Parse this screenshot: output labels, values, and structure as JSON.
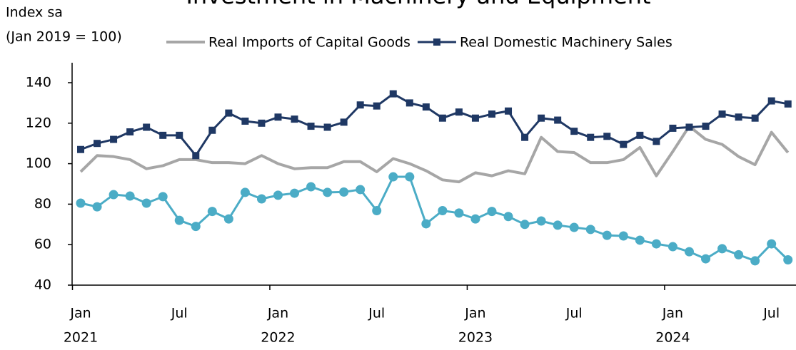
{
  "chart_data": {
    "type": "line",
    "title": "Investment in Machinery and Equipment",
    "y_label_lines": [
      "Index sa",
      "(Jan 2019 = 100)"
    ],
    "categories": [
      "Jan",
      null,
      null,
      null,
      null,
      null,
      "Jul",
      null,
      null,
      null,
      null,
      null,
      "Jan",
      null,
      null,
      null,
      null,
      null,
      "Jul",
      null,
      null,
      null,
      null,
      null,
      "Jan",
      null,
      null,
      null,
      null,
      null,
      "Jul",
      null,
      null,
      null,
      null,
      null,
      "Jan",
      null,
      null,
      null,
      null,
      null,
      "Jul",
      null
    ],
    "years": [
      "2021",
      "2022",
      "2023",
      "2024"
    ],
    "ylim": [
      40,
      140
    ],
    "yticks": [
      40,
      60,
      80,
      100,
      120,
      140
    ],
    "series": [
      {
        "name": "Real Imports of Capital Goods",
        "color": "#a6a6a6",
        "marker": "none",
        "values": [
          96,
          104,
          103.5,
          102,
          97.5,
          99,
          102,
          102,
          100.5,
          100.5,
          100,
          104,
          100,
          97.5,
          98,
          98,
          101,
          101,
          96,
          102.5,
          100,
          96.5,
          92,
          91,
          95.5,
          94,
          96.5,
          95,
          113,
          106,
          105.5,
          100.5,
          100.5,
          102,
          108,
          94,
          106,
          118.5,
          112,
          109.5,
          103.5,
          99.5,
          115.5,
          105.5
        ]
      },
      {
        "name": "Real Domestic Machinery Sales",
        "color": "#1f3864",
        "marker": "square",
        "values": [
          107,
          110,
          112,
          115.7,
          118,
          114,
          114,
          104,
          116.5,
          125,
          121,
          120,
          123,
          122,
          118.5,
          118,
          120.5,
          129,
          128.5,
          134.5,
          130,
          128,
          122.5,
          125.5,
          122.5,
          124.5,
          126,
          113,
          122.5,
          121.5,
          116,
          113,
          113.5,
          109.5,
          114,
          111,
          117.5,
          118,
          118.5,
          124.5,
          123,
          122.5,
          131,
          129.5
        ]
      },
      {
        "color": "#4bacc6",
        "marker": "circle",
        "values": [
          80.5,
          78.7,
          84.7,
          84,
          80.5,
          83.7,
          72,
          69,
          76.4,
          72.7,
          85.8,
          82.6,
          84.4,
          85.4,
          88.6,
          85.8,
          86,
          87.2,
          76.8,
          93.5,
          93.5,
          70.3,
          76.8,
          75.6,
          72.7,
          76.4,
          73.9,
          70,
          71.7,
          69.6,
          68.5,
          67.5,
          64.6,
          64.3,
          62.2,
          60.4,
          59,
          56.5,
          53,
          58,
          55,
          52,
          60.4,
          52.5
        ]
      }
    ]
  }
}
